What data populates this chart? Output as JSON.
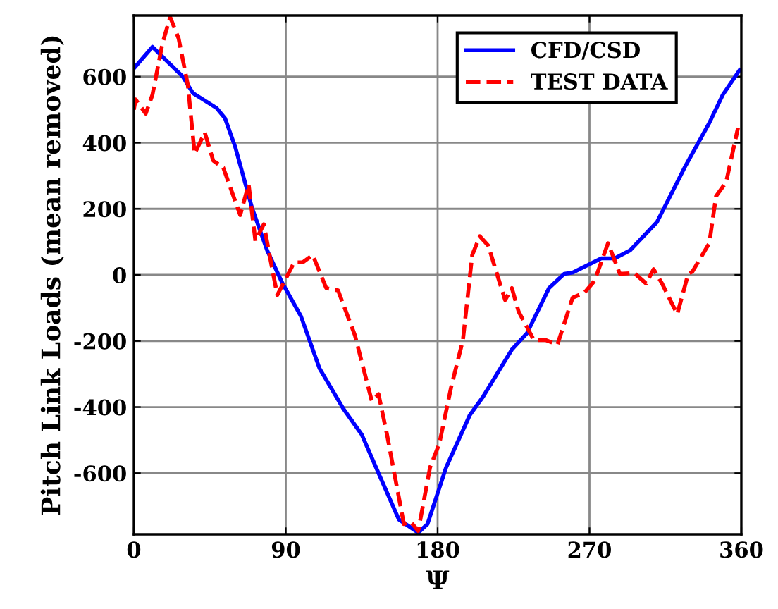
{
  "chart_data": {
    "type": "line",
    "xlabel": "Ψ",
    "ylabel": "Pitch Link Loads (mean removed)",
    "xlim": [
      0,
      360
    ],
    "xticks": [
      0,
      90,
      180,
      270,
      360
    ],
    "ylim": [
      -785,
      785
    ],
    "yticks": [
      -600,
      -400,
      -200,
      0,
      200,
      400,
      600
    ],
    "grid": true,
    "legend": "top right",
    "series": [
      {
        "name": "CFD/CSD",
        "color": "#0000ff",
        "line_style": "solid",
        "x": [
          0,
          11,
          29,
          35,
          49,
          54,
          60,
          70,
          79,
          88,
          99,
          110,
          124,
          135,
          146,
          157,
          168.5,
          174,
          185,
          199,
          207,
          224,
          233,
          246,
          255,
          260,
          277,
          285,
          294,
          310,
          327,
          341,
          349,
          359
        ],
        "values": [
          625,
          690,
          600,
          550,
          505,
          474,
          388,
          203,
          74,
          -25,
          -125,
          -283,
          -404,
          -483,
          -612,
          -740,
          -780,
          -754,
          -583,
          -425,
          -368,
          -226,
          -176,
          -40,
          3,
          7,
          50,
          50,
          74,
          160,
          331,
          460,
          545,
          620
        ]
      },
      {
        "name": "TEST DATA",
        "color": "#ff0000",
        "line_style": "dashed",
        "x": [
          0,
          1,
          7,
          11,
          17,
          21.5,
          26.5,
          32,
          36,
          42,
          47,
          53,
          63,
          68,
          72,
          77,
          82,
          85,
          95,
          100,
          106,
          114,
          121,
          131,
          141,
          145,
          150,
          160,
          164,
          168.5,
          175.5,
          181,
          188,
          195,
          200.5,
          205,
          210,
          216,
          220,
          224,
          228,
          237,
          244,
          251,
          260,
          267,
          273,
          281,
          288,
          296.5,
          303.5,
          308,
          313,
          322,
          328.5,
          331,
          341,
          345,
          351,
          358
        ],
        "values": [
          500,
          531,
          488,
          545,
          702,
          780,
          716,
          574,
          367,
          431,
          346,
          324,
          181,
          274,
          103,
          153,
          17,
          -61,
          38,
          38,
          60,
          -40,
          -47,
          -183,
          -382,
          -361,
          -483,
          -754,
          -747,
          -775,
          -583,
          -511,
          -340,
          -197,
          60,
          117,
          89,
          -11,
          -76,
          -40,
          -111,
          -197,
          -197,
          -211,
          -69,
          -54,
          -18,
          96,
          3,
          6,
          -26,
          17,
          -26,
          -119,
          3,
          10,
          96,
          238,
          281,
          445
        ]
      }
    ]
  }
}
